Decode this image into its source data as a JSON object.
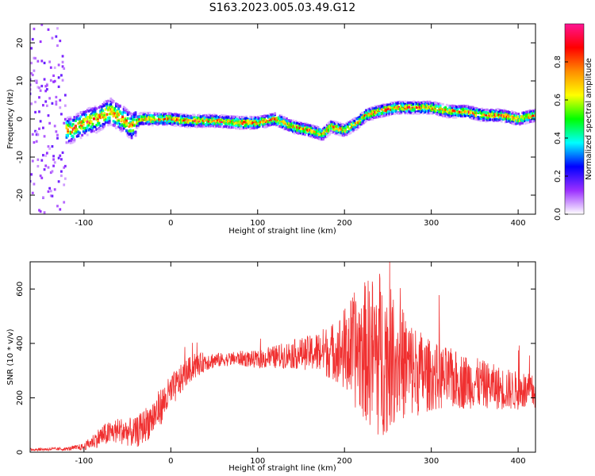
{
  "title": "S163.2023.005.03.49.G12",
  "chart_data": [
    {
      "type": "heatmap",
      "xlabel": "Height of straight line (km)",
      "ylabel": "Frequency (Hz)",
      "xlim": [
        -162,
        420
      ],
      "ylim": [
        -25,
        25
      ],
      "xticks": [
        -100,
        0,
        100,
        200,
        300,
        400
      ],
      "xtick_labels": [
        "-100",
        "0",
        "100",
        "200",
        "300",
        "400"
      ],
      "yticks": [
        -20,
        -10,
        0,
        10,
        20
      ],
      "ytick_labels": [
        "-20",
        "-10",
        "0",
        "10",
        "20"
      ],
      "colorbar": {
        "label": "Normalized spectral amplitude",
        "range": [
          0,
          1
        ],
        "ticks": [
          0.0,
          0.2,
          0.4,
          0.6,
          0.8
        ],
        "tick_labels": [
          "0.0",
          "0.2",
          "0.4",
          "0.6",
          "0.8"
        ],
        "colormap": [
          "#ffffff",
          "#9b30ff",
          "#0000ff",
          "#00ffff",
          "#00ff00",
          "#ffff00",
          "#ff8c00",
          "#ff0000",
          "#ff1493"
        ]
      },
      "ridge": {
        "x": [
          -115,
          -100,
          -85,
          -70,
          -55,
          -45,
          -35,
          -20,
          0,
          20,
          50,
          80,
          100,
          120,
          140,
          160,
          175,
          185,
          200,
          215,
          225,
          240,
          260,
          280,
          300,
          320,
          340,
          360,
          380,
          400,
          420
        ],
        "y": [
          -3,
          -1,
          0,
          2,
          0,
          -2,
          0,
          0,
          0,
          -0.5,
          -0.5,
          -1,
          -1,
          0,
          -2,
          -3,
          -4,
          -2,
          -3,
          -1,
          1,
          2,
          3,
          3,
          3,
          2,
          2,
          1,
          1,
          0,
          1
        ]
      }
    },
    {
      "type": "line",
      "xlabel": "Height of straight line (km)",
      "ylabel": "SNR (10 * v/v)",
      "xlim": [
        -162,
        420
      ],
      "ylim": [
        0,
        700
      ],
      "xticks": [
        -100,
        0,
        100,
        200,
        300,
        400
      ],
      "xtick_labels": [
        "-100",
        "0",
        "100",
        "200",
        "300",
        "400"
      ],
      "yticks": [
        0,
        200,
        400,
        600
      ],
      "ytick_labels": [
        "0",
        "200",
        "400",
        "600"
      ],
      "color": "#f03030",
      "envelope": {
        "x": [
          -162,
          -120,
          -100,
          -80,
          -60,
          -40,
          -20,
          0,
          20,
          40,
          60,
          80,
          100,
          120,
          140,
          160,
          180,
          200,
          220,
          240,
          260,
          280,
          300,
          320,
          340,
          360,
          380,
          400,
          420
        ],
        "y": [
          10,
          12,
          20,
          60,
          80,
          70,
          130,
          220,
          300,
          335,
          340,
          345,
          340,
          350,
          360,
          365,
          370,
          375,
          375,
          360,
          340,
          300,
          280,
          270,
          260,
          250,
          235,
          225,
          220
        ]
      },
      "noise_amplitude": {
        "x": [
          -162,
          -120,
          -100,
          -80,
          -60,
          -40,
          -20,
          0,
          20,
          60,
          100,
          160,
          190,
          210,
          240,
          260,
          300,
          360,
          420
        ],
        "y": [
          3,
          4,
          8,
          25,
          30,
          35,
          45,
          40,
          30,
          15,
          20,
          40,
          70,
          130,
          200,
          140,
          80,
          55,
          40
        ]
      }
    }
  ]
}
